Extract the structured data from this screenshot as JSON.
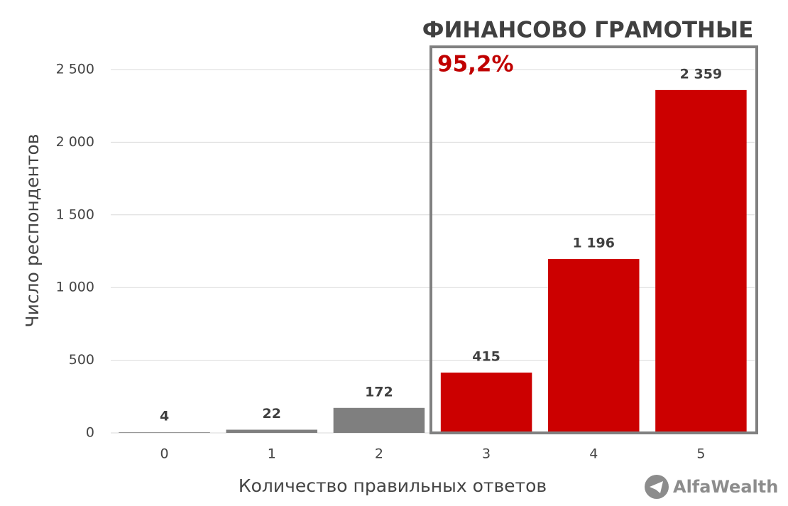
{
  "chart_data": {
    "type": "bar",
    "y_label": "Число респондентов",
    "x_label": "Количество правильных ответов",
    "categories": [
      "0",
      "1",
      "2",
      "3",
      "4",
      "5"
    ],
    "values": [
      4,
      22,
      172,
      415,
      1196,
      2359
    ],
    "value_labels": [
      "4",
      "22",
      "172",
      "415",
      "1 196",
      "2 359"
    ],
    "colors": [
      "#7f7f7f",
      "#7f7f7f",
      "#7f7f7f",
      "#cc0000",
      "#cc0000",
      "#cc0000"
    ],
    "ylim": [
      0,
      2500
    ],
    "yticks": [
      0,
      500,
      {
        "value": 1000,
        "label": "1 000"
      },
      {
        "value": 1500,
        "label": "1 500"
      },
      {
        "value": 2000,
        "label": "2 000"
      },
      {
        "value": 2500,
        "label": "2 500"
      }
    ],
    "grid": true,
    "annotations": [
      "ФИНАНСОВО ГРАМОТНЫЕ",
      "95,2%"
    ],
    "logo": "AlfaWealth"
  }
}
